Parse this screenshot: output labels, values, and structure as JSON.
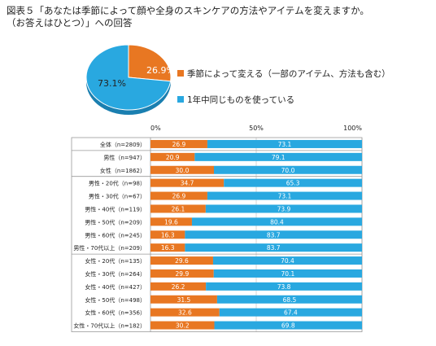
{
  "title_line1": "図表５「あなたは季節によって顔や全身のスキンケアの方法やアイテムを変えますか。",
  "title_line2": "（お答えはひとつ）」への回答",
  "colors": {
    "change": "#E87722",
    "same": "#29A8E0"
  },
  "chart_data": [
    {
      "type": "pie",
      "slices": [
        {
          "label": "季節によって変える（一部のアイテム、方法も含む）",
          "value": 26.9,
          "value_label": "26.9%"
        },
        {
          "label": "1年中同じものを使っている",
          "value": 73.1,
          "value_label": "73.1%"
        }
      ],
      "legend": "right"
    },
    {
      "type": "bar",
      "orientation": "horizontal",
      "stacked": true,
      "xlim": [
        0,
        100
      ],
      "xticks": [
        "0%",
        "50%",
        "100%"
      ],
      "categories": [
        "全体（n=2809）",
        "男性（n=947）",
        "女性（n=1862）",
        "男性・20代（n=98）",
        "男性・30代（n=67）",
        "男性・40代（n=119）",
        "男性・50代（n=209）",
        "男性・60代（n=245）",
        "男性・70代以上（n=209）",
        "女性・20代（n=135）",
        "女性・30代（n=264）",
        "女性・40代（n=427）",
        "女性・50代（n=498）",
        "女性・60代（n=356）",
        "女性・70代以上（n=182）"
      ],
      "series": [
        {
          "name": "季節によって変える（一部のアイテム、方法も含む）",
          "values": [
            26.9,
            20.9,
            30.0,
            34.7,
            26.9,
            26.1,
            19.6,
            16.3,
            16.3,
            29.6,
            29.9,
            26.2,
            31.5,
            32.6,
            30.2
          ],
          "labels": [
            "26.9",
            "20.9",
            "30.0",
            "34.7",
            "26.9",
            "26.1",
            "19.6",
            "16.3",
            "16.3",
            "29.6",
            "29.9",
            "26.2",
            "31.5",
            "32.6",
            "30.2"
          ]
        },
        {
          "name": "1年中同じものを使っている",
          "values": [
            73.1,
            79.1,
            70.0,
            65.3,
            73.1,
            73.9,
            80.4,
            83.7,
            83.7,
            70.4,
            70.1,
            73.8,
            68.5,
            67.4,
            69.8
          ],
          "labels": [
            "73.1",
            "79.1",
            "70.0",
            "65.3",
            "73.1",
            "73.9",
            "80.4",
            "83.7",
            "83.7",
            "70.4",
            "70.1",
            "73.8",
            "68.5",
            "67.4",
            "69.8"
          ]
        }
      ],
      "groups_separated_after": [
        0,
        2,
        8
      ]
    }
  ]
}
